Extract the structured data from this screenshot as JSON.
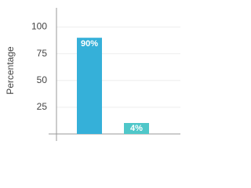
{
  "chart_data": {
    "type": "bar",
    "y_label": "Percentage",
    "categories": [
      null,
      null
    ],
    "values": [
      90,
      4
    ],
    "value_labels": [
      "90%",
      "4%"
    ],
    "colors": [
      "#35b0d9",
      "#4fc7c9"
    ],
    "ylim": [
      0,
      118
    ],
    "yticks": [
      25,
      50,
      75,
      100
    ],
    "grid": true
  }
}
